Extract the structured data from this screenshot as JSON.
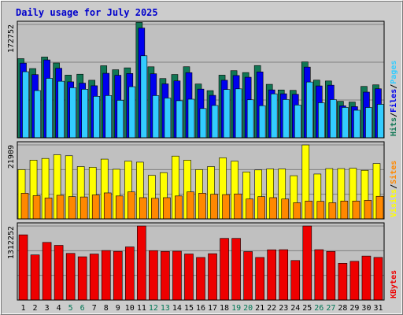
{
  "chart_data": {
    "type": "bar",
    "title": "Daily usage for July 2025",
    "days": [
      "1",
      "2",
      "3",
      "4",
      "5",
      "6",
      "7",
      "8",
      "9",
      "10",
      "11",
      "12",
      "13",
      "14",
      "15",
      "16",
      "17",
      "18",
      "19",
      "20",
      "21",
      "22",
      "23",
      "24",
      "25",
      "26",
      "27",
      "28",
      "29",
      "30",
      "31"
    ],
    "weekend_days": [
      "5",
      "6",
      "12",
      "13",
      "19",
      "20",
      "26",
      "27"
    ],
    "colors": {
      "hits": "#117755",
      "files": "#0000ee",
      "pages": "#33ccff",
      "visits": "#ffff00",
      "sites": "#ff8800",
      "kbytes": "#ee0000",
      "weekday_label": "#000000",
      "weekend_label": "#007755",
      "title": "#0000cc",
      "panel_bg": "#c0c0c0"
    },
    "panels": [
      {
        "id": "requests",
        "tick_label": "172752",
        "max": 172752,
        "legend": [
          {
            "text": "Hits",
            "color": "#117755"
          },
          {
            "text": "/",
            "color": "#000000"
          },
          {
            "text": "Files",
            "color": "#0000ee"
          },
          {
            "text": "/",
            "color": "#000000"
          },
          {
            "text": "Pages",
            "color": "#33ccff"
          }
        ],
        "series": [
          {
            "name": "Hits",
            "color": "#117755",
            "values": [
              120600,
              105500,
              123100,
              114000,
              95500,
              96900,
              87700,
              109800,
              103700,
              106600,
              175900,
              108200,
              90300,
              96500,
              108300,
              82000,
              71900,
              95500,
              102300,
              99400,
              110100,
              81500,
              72900,
              72300,
              115700,
              87900,
              86600,
              55600,
              54500,
              78300,
              80700
            ]
          },
          {
            "name": "Files",
            "color": "#0000ee",
            "values": [
              113800,
              96300,
              118700,
              106000,
              85300,
              83300,
              79300,
              98300,
              95300,
              98000,
              167200,
              97600,
              82200,
              86700,
              99300,
              74200,
              64700,
              87700,
              94900,
              92300,
              100400,
              73000,
              67100,
              66300,
              107800,
              79100,
              80200,
              48800,
              47500,
              69600,
              74700
            ]
          },
          {
            "name": "Pages",
            "color": "#33ccff",
            "values": [
              100700,
              72000,
              90600,
              86200,
              76300,
              74000,
              63200,
              64400,
              57200,
              77900,
              125000,
              64300,
              60600,
              56500,
              58800,
              44600,
              49300,
              73600,
              74600,
              57900,
              49000,
              67000,
              58300,
              50000,
              85000,
              53400,
              58200,
              46300,
              42000,
              46200,
              51000
            ]
          }
        ]
      },
      {
        "id": "visits",
        "tick_label": "21909",
        "max": 21909,
        "legend": [
          {
            "text": "Visits",
            "color": "#ffff00"
          },
          {
            "text": "/",
            "color": "#000000"
          },
          {
            "text": "Sites",
            "color": "#ff8800"
          }
        ],
        "series": [
          {
            "name": "Visits",
            "color": "#ffff00",
            "values": [
              14600,
              17400,
              17900,
              19000,
              18700,
              15500,
              15300,
              17700,
              14700,
              17100,
              16800,
              12900,
              13700,
              18600,
              17400,
              14600,
              15500,
              18100,
              17100,
              13900,
              14500,
              14800,
              14800,
              12800,
              21900,
              13300,
              14900,
              14900,
              15000,
              14400,
              16400
            ]
          },
          {
            "name": "Sites",
            "color": "#ff8800",
            "values": [
              7600,
              6900,
              6200,
              7000,
              6600,
              6500,
              7100,
              7700,
              6800,
              8000,
              6300,
              6100,
              6300,
              6800,
              8000,
              7600,
              7300,
              7200,
              7400,
              5900,
              6600,
              6300,
              5900,
              4800,
              5300,
              5200,
              4800,
              5300,
              5300,
              5500,
              6700
            ]
          }
        ]
      },
      {
        "id": "kbytes",
        "tick_label": "1312252",
        "max": 1312252,
        "legend": [
          {
            "text": "KBytes",
            "color": "#ee0000"
          }
        ],
        "series": [
          {
            "name": "KBytes",
            "color": "#ee0000",
            "values": [
              1156000,
              800000,
              1022000,
              970000,
              827000,
              767000,
              816000,
              878000,
              863000,
              942000,
              1312000,
              876000,
              862000,
              866000,
              817000,
              755000,
              822000,
              1093000,
              1093000,
              859000,
              755000,
              891000,
              893000,
              701000,
              1312000,
              893000,
              862000,
              652000,
              687000,
              780000,
              756000
            ]
          }
        ]
      }
    ]
  }
}
